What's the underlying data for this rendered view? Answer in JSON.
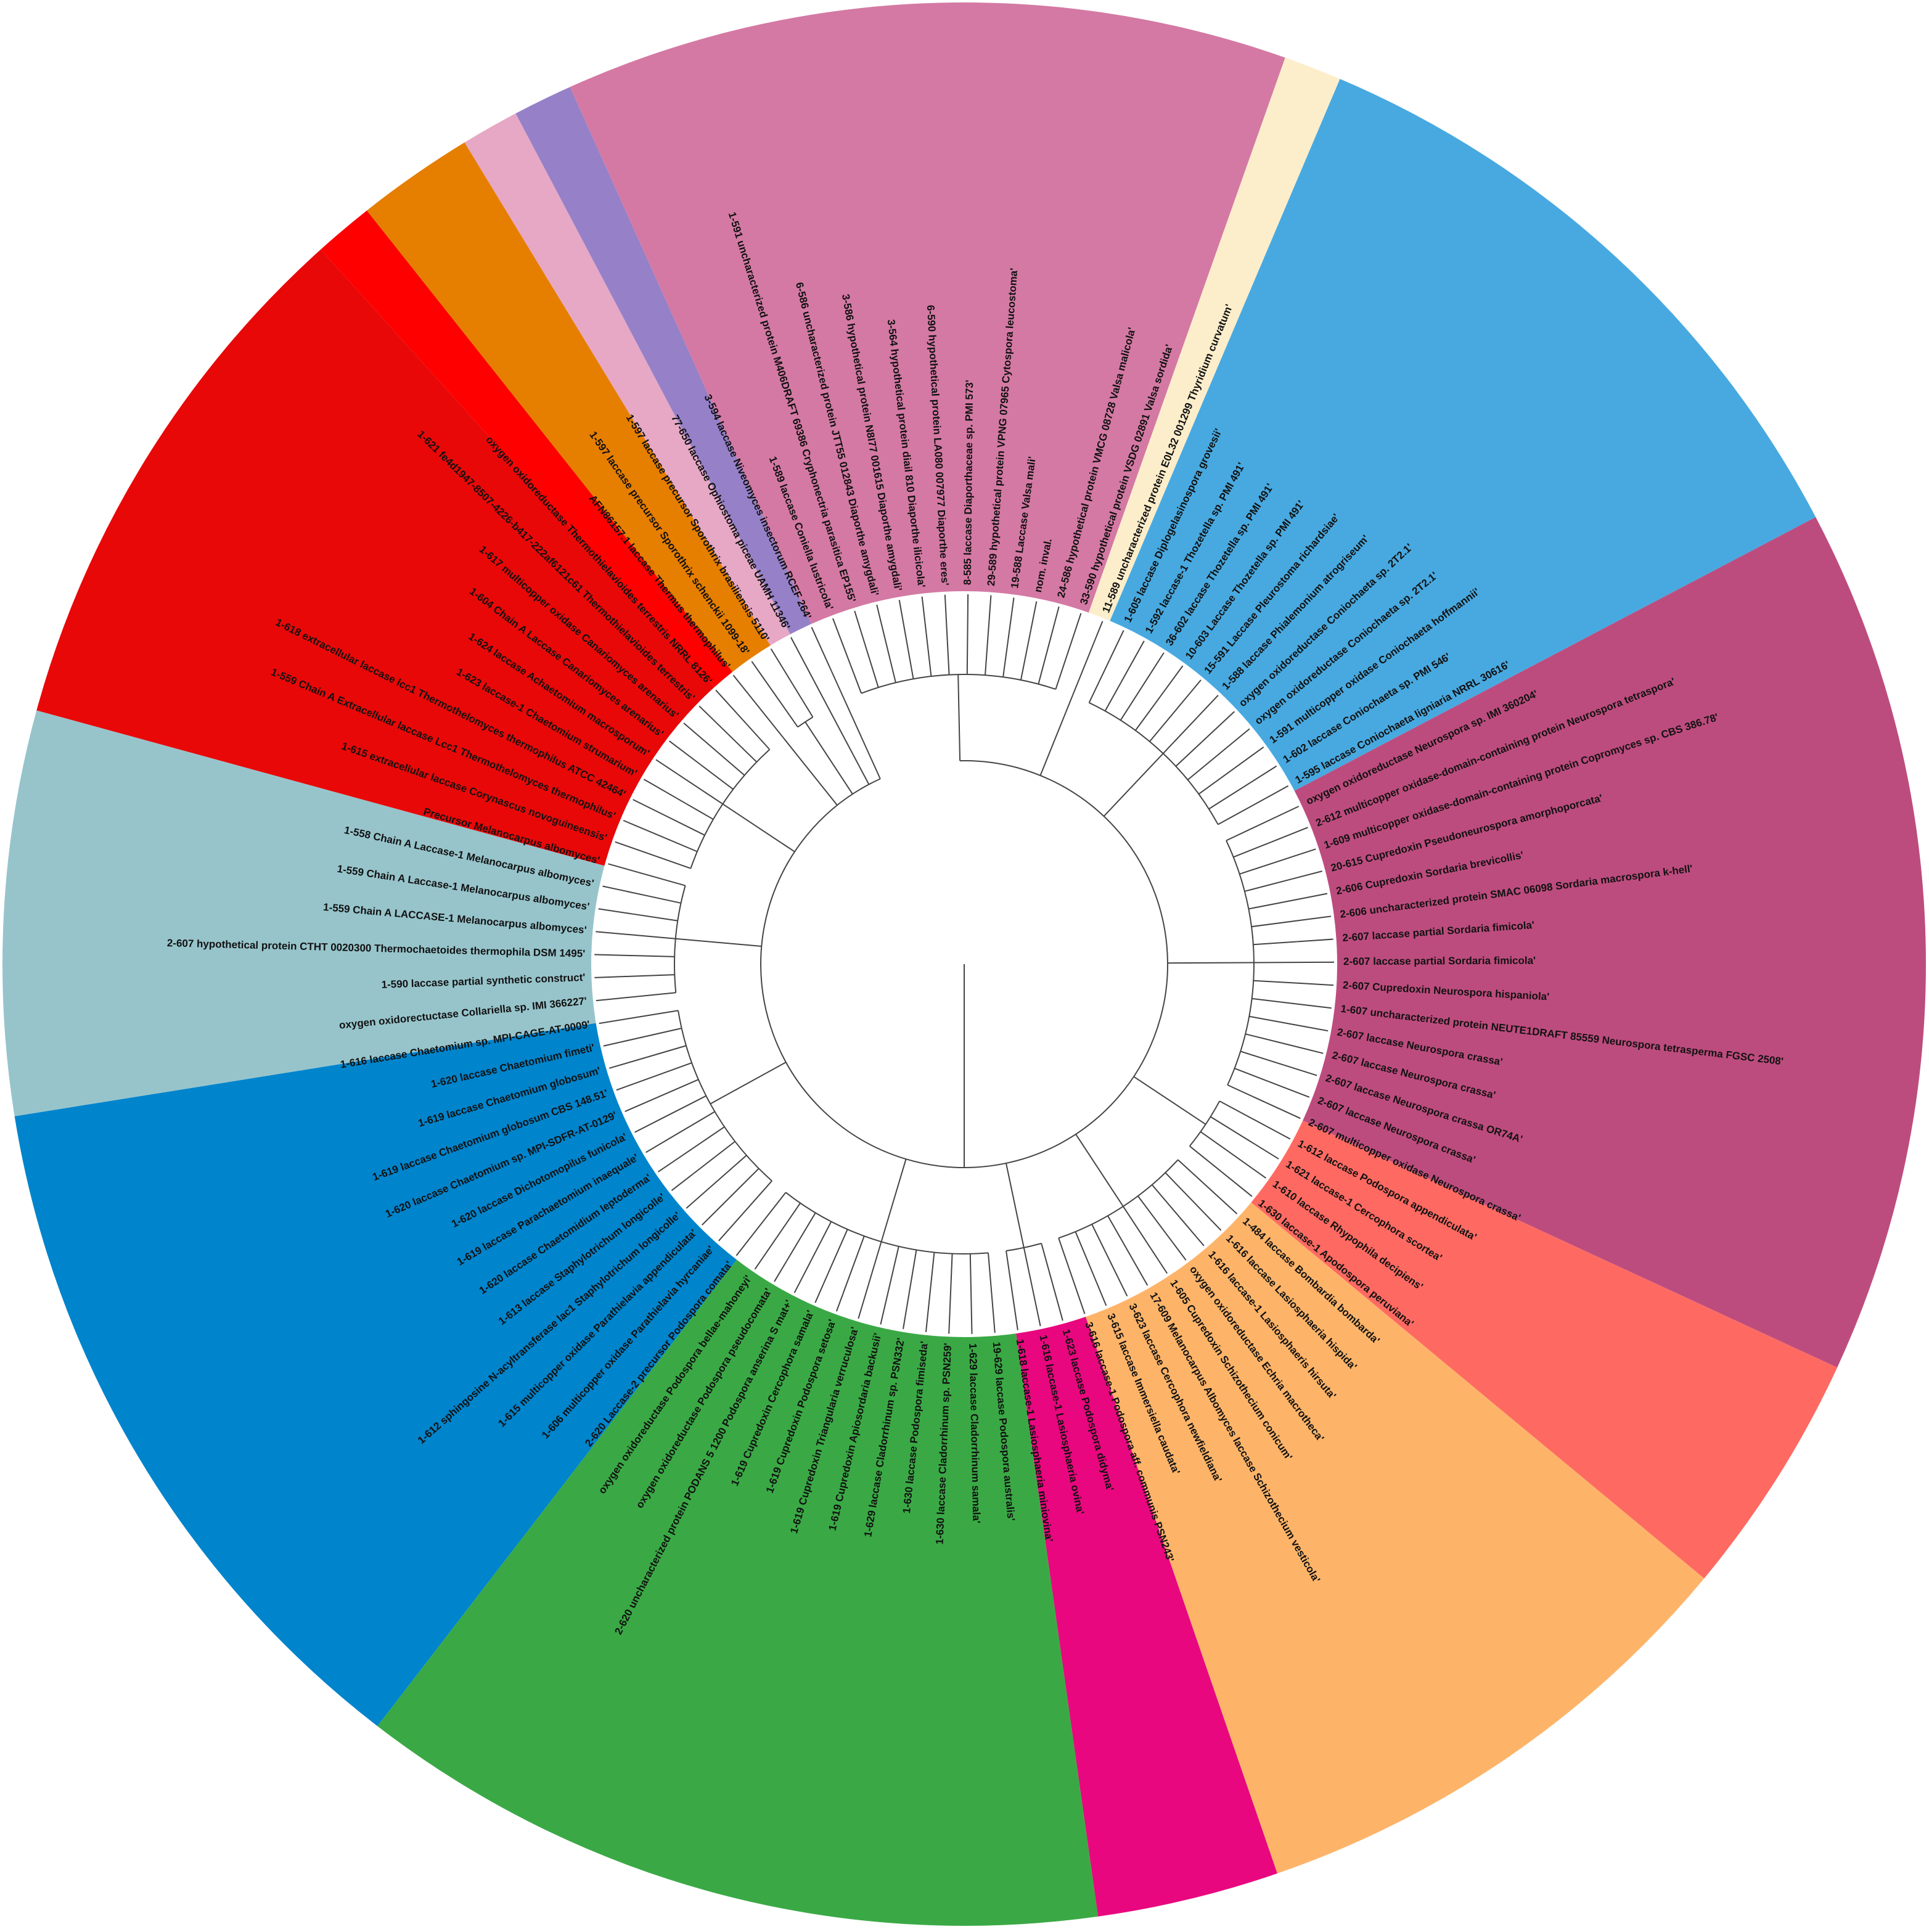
{
  "tree": {
    "clades": [
      {
        "color": "#d479a4",
        "labels": [
          "1-589 laccase Coniella lustricola'",
          "1-591 uncharacterized protein M406DRAFT 69386 Cryphonectria parasitica EP155'",
          "6-586 uncharacterized protein JTT55 012843 Diaporthe amygdali'",
          "3-586 hypothetical protein N8I77 001615 Diaporthe amygdali'",
          "3-564 hypothetical protein diail 810 Diaporthe ilicicola'",
          "6-590 hypothetical protein LA080 007977 Diaporthe eres'",
          "8-585 laccase Diaporthaceae sp. PMI 573'",
          "29-589 hypothetical protein VPNG 07965 Cytospora leucostoma'",
          "19-588 Laccase Valsa mali'",
          "nom. inval.",
          "24-586 hypothetical protein VMCG 08728 Valsa malicola'",
          "33-590 hypothetical protein VSDG 02891 Valsa sordida'"
        ]
      },
      {
        "color": "#fdeecb",
        "labels": [
          "11-589 uncharacterized protein E0L32 001299 Thyridium curvatum'"
        ]
      },
      {
        "color": "#48a9e0",
        "labels": [
          "1-605 laccase Diplogelasinospora grovesii'",
          "1-592 laccase-1 Thozetella sp. PMI 491'",
          "36-602 laccase Thozetella sp. PMI 491'",
          "10-603 Laccase Thozetella sp. PMI 491'",
          "15-591 Laccase Pleurostoma richardsiae'",
          "1-588 laccase Phialemonium atrogriseum'",
          "oxygen oxidoreductase Coniochaeta sp. 2T2.1'",
          "oxygen oxidoreductase Coniochaeta sp. 2T2.1'",
          "1-591 multicopper oxidase Coniochaeta hoffmannii'",
          "1-602 laccase Coniochaeta sp. PMI 546'",
          "1-595 laccase Coniochaeta ligniaria NRRL 30616'"
        ]
      },
      {
        "color": "#bd4c7e",
        "labels": [
          "oxygen oxidoreductase Neurospora sp. IMI 360204'",
          "2-612 multicopper oxidase-domain-containing protein Neurospora tetraspora'",
          "1-609 multicopper oxidase-domain-containing protein Copromyces sp. CBS 386.78'",
          "20-615 Cupredoxin Pseudoneurospora amorphoporcata'",
          "2-606 Cupredoxin Sordaria brevicollis'",
          "2-606 uncharacterized protein SMAC 06098 Sordaria macrospora k-hell'",
          "2-607 laccase partial Sordaria fimicola'",
          "2-607 laccase partial Sordaria fimicola'",
          "2-607 Cupredoxin Neurospora hispaniola'",
          "1-607 uncharacterized protein NEUTE1DRAFT 85559 Neurospora tetrasperma FGSC 2508'",
          "2-607 laccase Neurospora crassa'",
          "2-607 laccase Neurospora crassa'",
          "2-607 laccase Neurospora crassa OR74A'",
          "2-607 laccase Neurospora crassa'",
          "2-607 multicopper oxidase Neurospora crassa'"
        ]
      },
      {
        "color": "#fe6a62",
        "labels": [
          "1-612 laccase Podospora appendiculata'",
          "1-621 laccase-1 Cercophora scortea'",
          "1-610 laccase Rhypophila decipiens'",
          "1-630 laccase-1 Apodospora peruviana'"
        ]
      },
      {
        "color": "#fdb469",
        "labels": [
          "1-484 laccase Bombardia bombarda'",
          "1-616 laccase Lasiosphaeria hispida'",
          "1-616 laccase-1 Lasiosphaeris hirsuta'",
          "oxygen oxidoreductase Echria macrotheca'",
          "1-605 Cupredoxin Schizothecium conicum'",
          "17-609 Melanocarpus Albomyces laccase Schizothecium vesticola'",
          "3-623 laccase Cercophora newfieldiana'",
          "3-615 laccase Immersiella caudata'",
          "3-616 laccase-1 Podospora aff. communis PSN243'"
        ]
      },
      {
        "color": "#e8077e",
        "labels": [
          "1-623 laccase Podospora didyma'",
          "1-616 laccase-1 Lasiosphaeria ovina'",
          "1-618 laccase-1 Lasiosphaeria miniovina'"
        ]
      },
      {
        "color": "#3aa945",
        "labels": [
          "19-629 laccase Podospora australis'",
          "1-629 laccase Cladorrhinum samala'",
          "1-630 laccase Cladorrhinum sp. PSN259'",
          "1-630 laccase Podospora fimiseda'",
          "1-629 laccase Cladorrhinum sp. PSN332'",
          "1-619 Cupredoxin Apiosordaria backusii'",
          "1-619 Cupredoxin Triangularia verruculosa'",
          "1-619 Cupredoxin Podospora setosa'",
          "1-619 Cupredoxin Cercophora samala'",
          "2-620 uncharacterized protein PODANS 5 1200 Podospora anserina S mat+'",
          "oxygen oxidoreductase Podospora pseudocomata'",
          "oxygen oxidoreductase Podospora bellae-mahoneyi'",
          "2-620 Laccase-2 precursor Podospora comata'"
        ]
      },
      {
        "color": "#0084cc",
        "labels": [
          "1-606 multicopper oxidase Parathielavia hyrcaniae'",
          "1-615 multicopper oxidase Parathielavia appendiculata'",
          "1-612 sphingosine N-acyltransferase lac1 Staphylotrichum longicolle'",
          "1-613 laccase Staphylotrichum longicolle'",
          "1-620 laccase Chaetomidium leptoderma'",
          "1-619 laccase Parachaetomium inaequale'",
          "1-620 laccase Dichotomopilus funicola'",
          "1-620 laccase Chaetomium sp. MPI-SDFR-AT-0129'",
          "1-619 laccase Chaetomium globosum CBS 148.51'",
          "1-619 laccase Chaetomium globosum'",
          "1-620 laccase Chaetomium fimeti'",
          "1-616 laccase Chaetomium sp. MPI-CAGE-AT-0009'"
        ]
      },
      {
        "color": "#97c4cb",
        "labels": [
          "oxygen oxidorectuctase Collariella sp. IMI 366227'",
          "1-590 laccase partial synthetic construct'",
          "2-607 hypothetical protein CTHT 0020300 Thermochaetoides thermophila DSM 1495'",
          "1-559 Chain A LACCASE-1 Melanocarpus albomyces'",
          "1-559 Chain A Laccase-1 Melanocarpus albomyces'",
          "1-558 Chain A Laccase-1 Melanocarpus albomyces'",
          "Precursor Melanocarpus albomyces'"
        ]
      },
      {
        "color": "#e80808",
        "labels": [
          "1-615 extracellular laccase Corynascus novoguineensis'",
          "1-559 Chain A Extracellular laccase Lcc1 Thermothelomyces thermophilus'",
          "1-618 extracellular laccase lcc1 Thermothelomyces thermophilus ATCC 42464'",
          "1-623 laccase-1 Chaetomium strumarium'",
          "1-624 laccase Achaetomium macrosporum'",
          "1-604 Chain A Laccase Canariomyces arenarius'",
          "1-617 multicopper oxidase Canariomyces arenarius'",
          "1-621 fe4d1947-8507-4226-b417-222af6121c61 Thermothielavioides terrestris'",
          "oxygen oxidoreductase Thermothielavioides terrestris NRRL 8126'"
        ]
      },
      {
        "color": "#ff0000",
        "labels": [
          "AFN86157.1 laccase Thermus thermophilus'"
        ]
      },
      {
        "color": "#e67e00",
        "labels": [
          "1-597 laccase precursor Sporothrix schenckii 1099-18'",
          "1-597 laccase precursor Sporothrix brasiliensis 5110'"
        ]
      },
      {
        "color": "#e6a8c4",
        "labels": [
          "77-650 laccase Ophiostoma piceae UAMH 11346'"
        ]
      },
      {
        "color": "#9680c8",
        "labels": [
          "3-594 laccase Niveomyces insectorum RCEF 264'"
        ]
      }
    ]
  }
}
